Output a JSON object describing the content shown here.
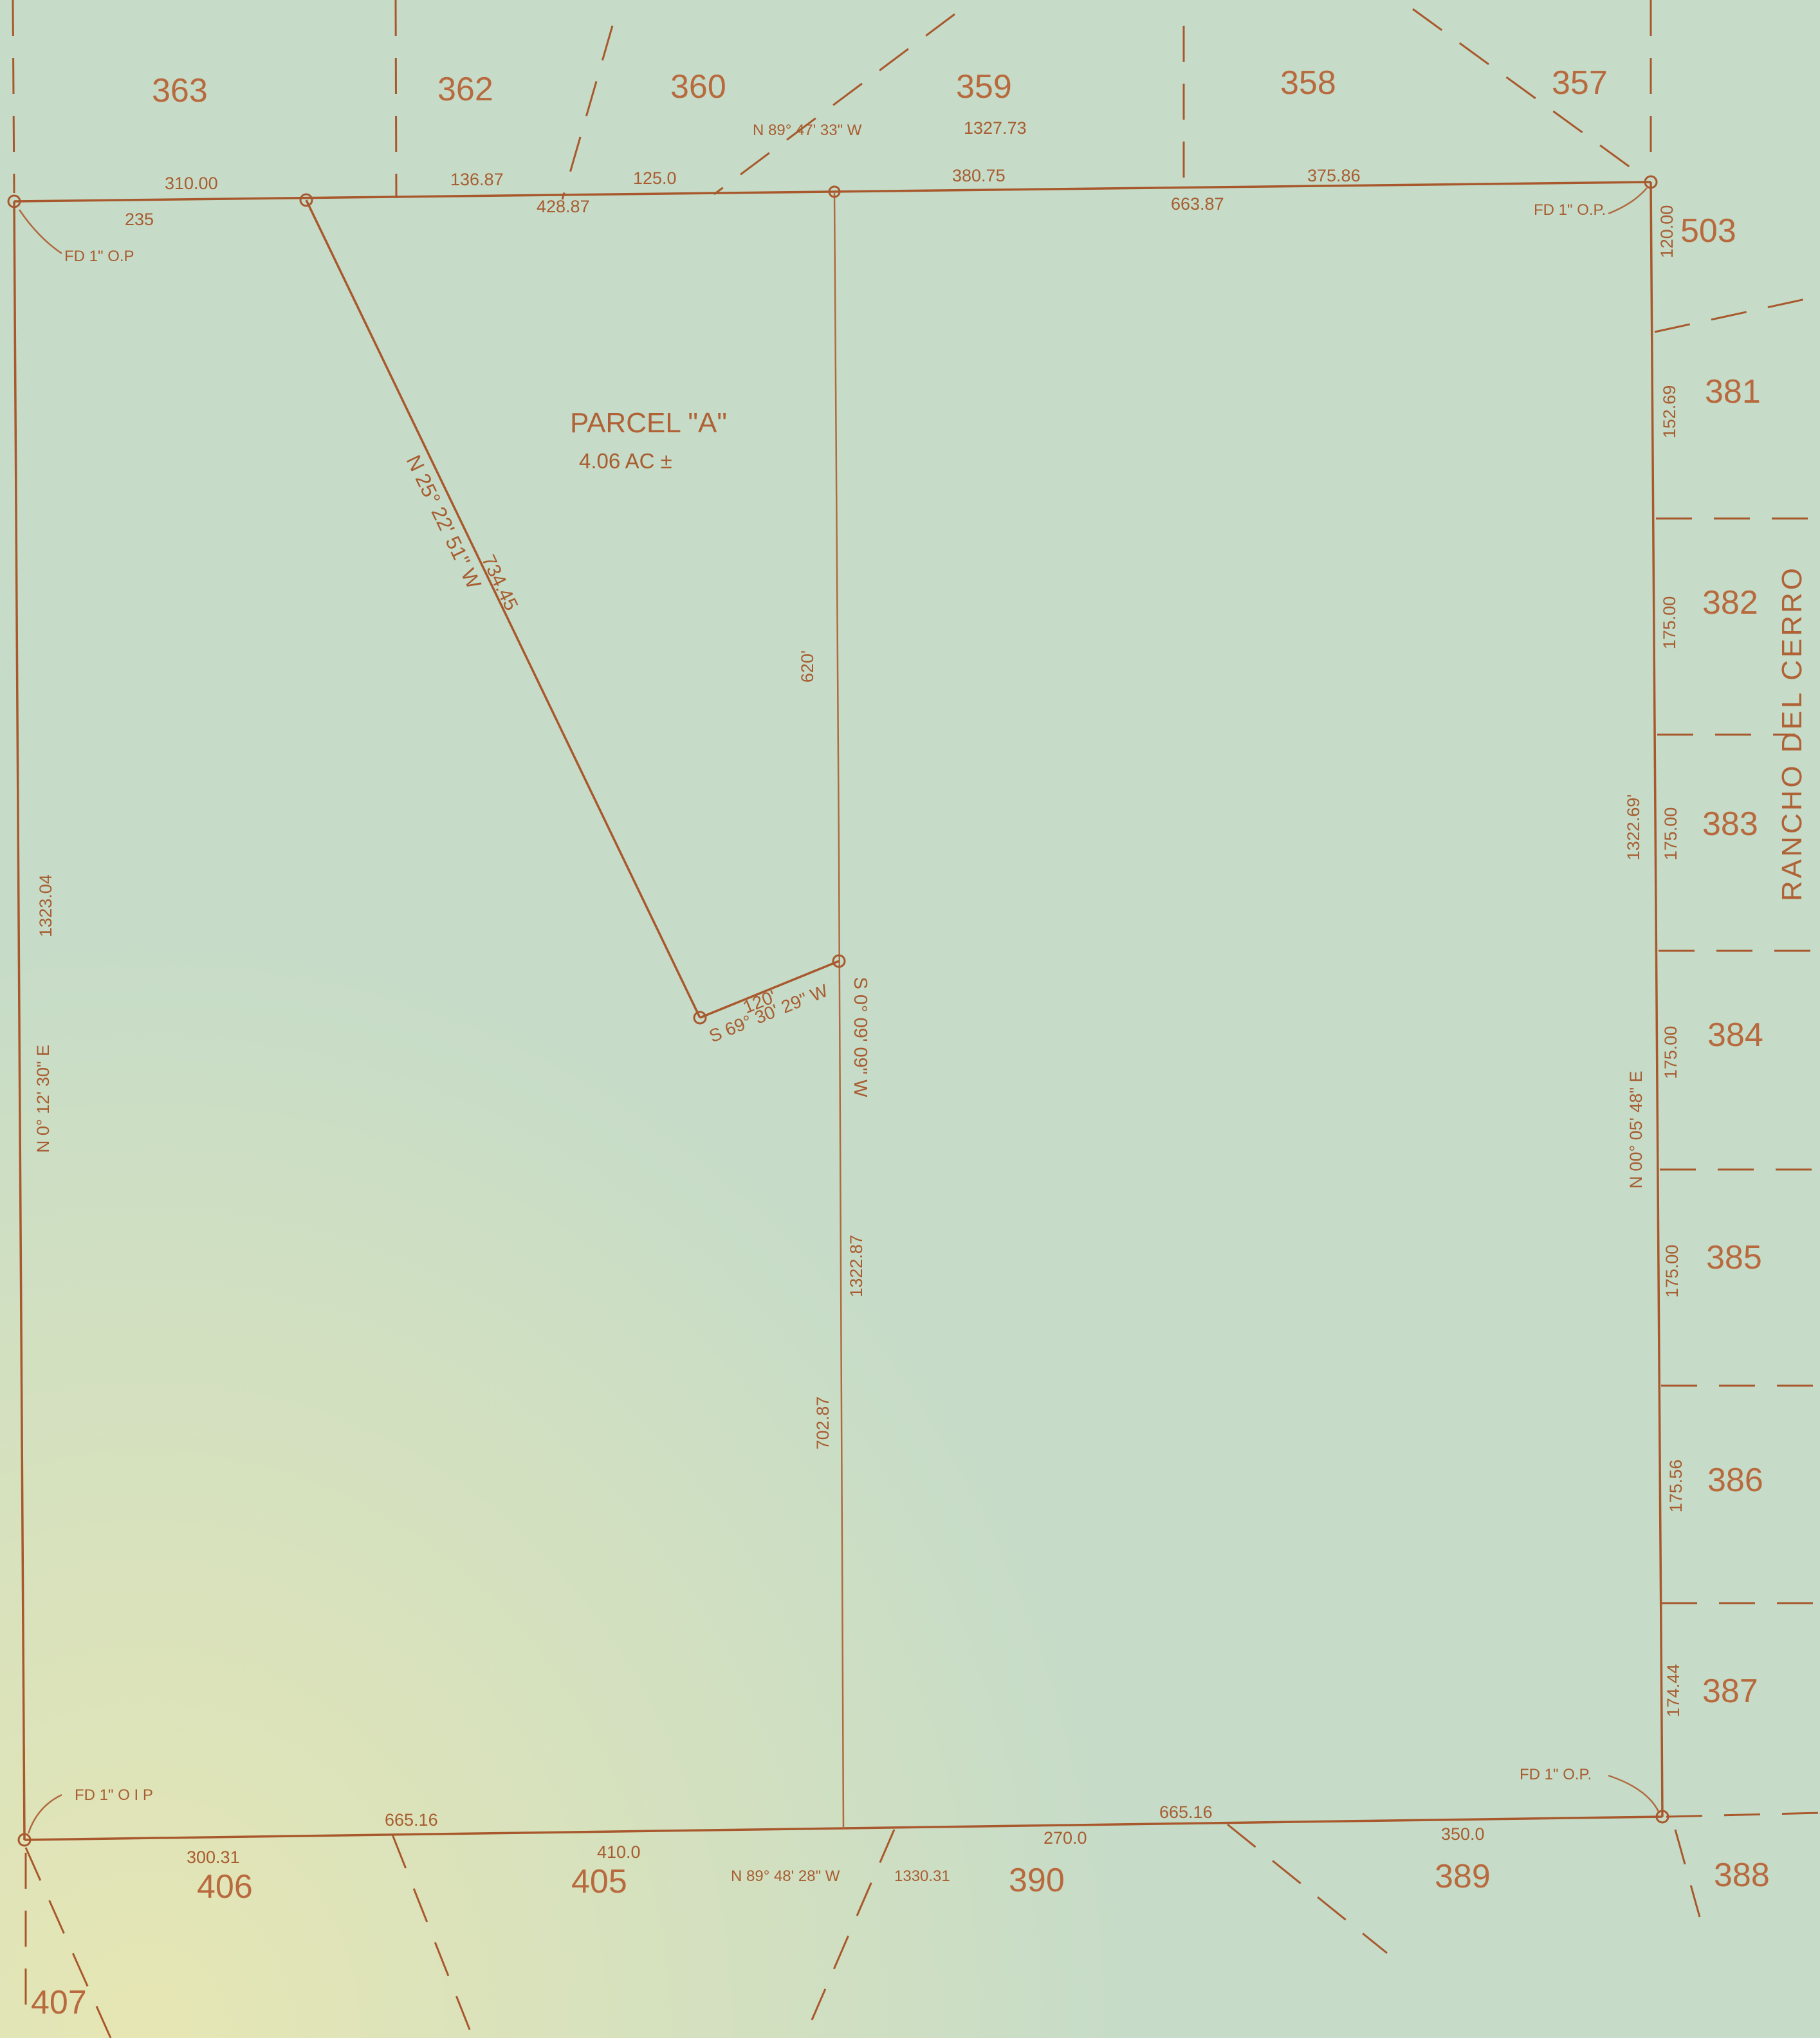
{
  "parcel": {
    "name": "PARCEL \"A\"",
    "area": "4.06 AC ±"
  },
  "road": {
    "name": "RANCHO DEL CERRO"
  },
  "lots": {
    "l363": "363",
    "l362": "362",
    "l360": "360",
    "l359": "359",
    "l358": "358",
    "l357": "357",
    "l503": "503",
    "l381": "381",
    "l382": "382",
    "l383": "383",
    "l384": "384",
    "l385": "385",
    "l386": "386",
    "l387": "387",
    "l388": "388",
    "l389": "389",
    "l390": "390",
    "l405": "405",
    "l406": "406",
    "l407": "407"
  },
  "top": {
    "bearing": "N 89° 47' 33\" W",
    "total": "1327.73",
    "d310": "310.00",
    "d136": "136.87",
    "d125": "125.0",
    "d380": "380.75",
    "d375": "375.86",
    "d235": "235",
    "d428": "428.87",
    "d663": "663.87"
  },
  "bottom": {
    "bearing": "N 89° 48' 28\" W",
    "total": "1330.31",
    "d300": "300.31",
    "d665a": "665.16",
    "d410": "410.0",
    "d270": "270.0",
    "d665b": "665.16",
    "d350": "350.0"
  },
  "west": {
    "bearing": "N 0° 12' 30\" E",
    "total": "1323.04"
  },
  "east": {
    "bearing": "N 00° 05' 48\" E",
    "total": "1322.69'",
    "s120": "120.00",
    "s152": "152.69",
    "s175a": "175.00",
    "s175b": "175.00",
    "s175c": "175.00",
    "s175d": "175.00",
    "s175e": "175.56",
    "s174": "174.44"
  },
  "diag": {
    "bearing": "N 25° 22' 51\" W",
    "length": "734.45"
  },
  "short": {
    "bearing": "S 69° 30' 29\" W",
    "length": "120'"
  },
  "mid": {
    "bearing": "S 0° 09' 09\" W",
    "total": "1322.87",
    "upper": "620'",
    "lower": "702.87"
  },
  "monuments": {
    "nw": "FD 1\" O.P",
    "ne": "FD 1\" O.P.",
    "sw": "FD 1\" O I P",
    "se": "FD 1\" O.P."
  }
}
